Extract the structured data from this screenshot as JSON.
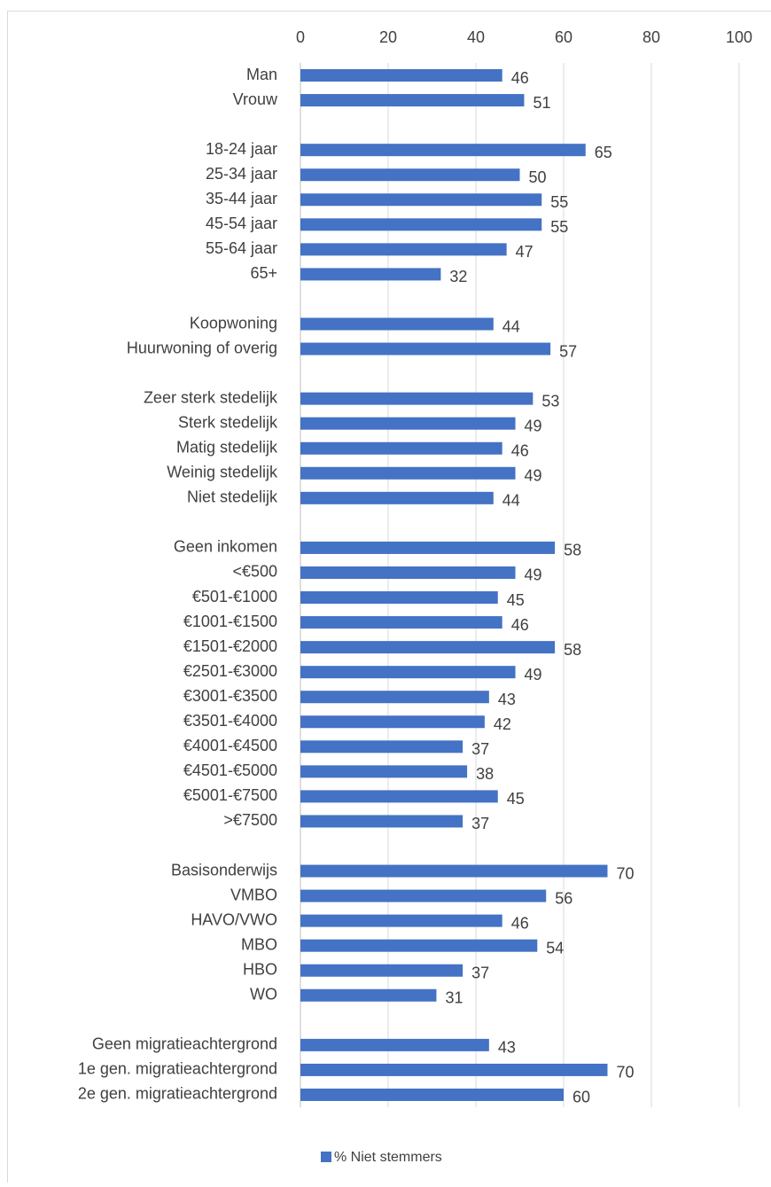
{
  "chart_data": {
    "type": "hbar",
    "categories": [
      "Man",
      "Vrouw",
      null,
      "18-24 jaar",
      "25-34 jaar",
      "35-44 jaar",
      "45-54 jaar",
      "55-64 jaar",
      "65+",
      null,
      "Koopwoning",
      "Huurwoning of overig",
      null,
      "Zeer sterk stedelijk",
      "Sterk stedelijk",
      "Matig stedelijk",
      "Weinig stedelijk",
      "Niet stedelijk",
      null,
      "Geen inkomen",
      "<€500",
      "€501-€1000",
      "€1001-€1500",
      "€1501-€2000",
      "€2501-€3000",
      "€3001-€3500",
      "€3501-€4000",
      "€4001-€4500",
      "€4501-€5000",
      "€5001-€7500",
      ">€7500",
      null,
      "Basisonderwijs",
      "VMBO",
      "HAVO/VWO",
      "MBO",
      "HBO",
      "WO",
      null,
      "Geen migratieachtergrond",
      "1e gen. migratieachtergrond",
      "2e gen. migratieachtergrond"
    ],
    "series": [
      {
        "name": "% Niet stemmers",
        "color": "#4472c4",
        "values": [
          46,
          51,
          null,
          65,
          50,
          55,
          55,
          47,
          32,
          null,
          44,
          57,
          null,
          53,
          49,
          46,
          49,
          44,
          null,
          58,
          49,
          45,
          46,
          58,
          49,
          43,
          42,
          37,
          38,
          45,
          37,
          null,
          70,
          56,
          46,
          54,
          37,
          31,
          null,
          43,
          70,
          60
        ]
      }
    ],
    "xlim": [
      0,
      100
    ],
    "xticks": [
      0,
      20,
      40,
      60,
      80,
      100
    ],
    "grid": true,
    "legend": "bottom"
  }
}
